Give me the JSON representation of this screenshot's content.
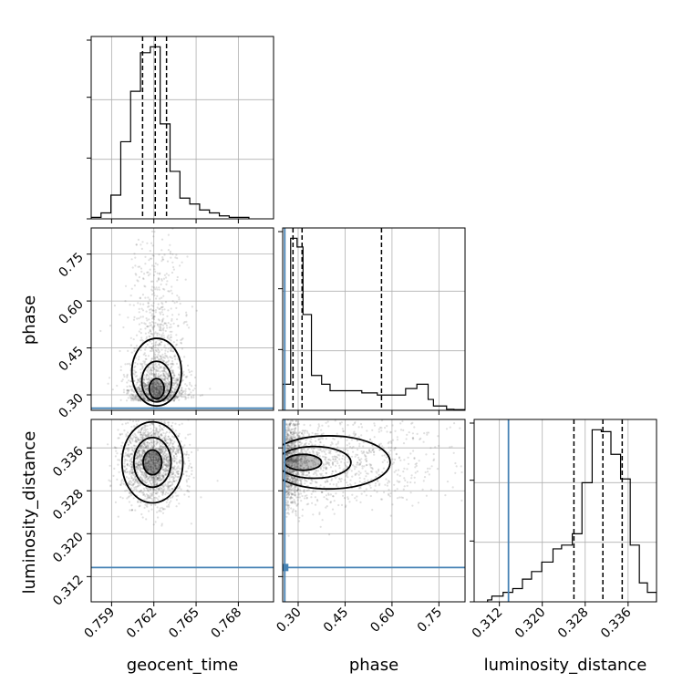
{
  "chart_data": {
    "type": "corner",
    "parameters": [
      "geocent_time",
      "phase",
      "luminosity_distance"
    ],
    "axis_labels": {
      "x": [
        "geocent_time",
        "phase",
        "luminosity_distance"
      ],
      "y": [
        "phase",
        "luminosity_distance"
      ]
    },
    "truths": {
      "geocent_time": 0.7568,
      "phase": 0.2572,
      "luminosity_distance": 0.3137
    },
    "truth_color": "#4682b4",
    "grid": true,
    "ranges": {
      "geocent_time": [
        0.75755,
        0.7705
      ],
      "phase": [
        0.2505,
        0.8335
      ],
      "luminosity_distance": [
        0.3073,
        0.3413
      ]
    },
    "ticks": {
      "geocent_time": {
        "values": [
          0.759,
          0.762,
          0.765,
          0.768
        ],
        "labels": [
          "0.759",
          "0.762",
          "0.765",
          "0.768"
        ]
      },
      "phase": {
        "values": [
          0.3,
          0.45,
          0.6,
          0.75
        ],
        "labels": [
          "0.30",
          "0.45",
          "0.60",
          "0.75"
        ]
      },
      "luminosity_distance": {
        "values": [
          0.312,
          0.32,
          0.328,
          0.336
        ],
        "labels": [
          "0.312",
          "0.320",
          "0.328",
          "0.336"
        ]
      }
    },
    "diagonals": [
      {
        "parameter": "geocent_time",
        "quantiles": [
          0.7612,
          0.7621,
          0.7629
        ],
        "bin_edges": [
          0.75755,
          0.75825,
          0.75895,
          0.75965,
          0.76035,
          0.76105,
          0.76175,
          0.76245,
          0.76315,
          0.76385,
          0.76455,
          0.76525,
          0.76595,
          0.76665,
          0.76735,
          0.76805,
          0.76875
        ],
        "counts": [
          0.5,
          2,
          8,
          26,
          43,
          56,
          58,
          32,
          16,
          7,
          5,
          3,
          2,
          1,
          0.5,
          0.5
        ]
      },
      {
        "parameter": "phase",
        "quantiles": [
          0.2835,
          0.3125,
          0.5665
        ],
        "bin_edges": [
          0.2505,
          0.276,
          0.2965,
          0.3155,
          0.3425,
          0.375,
          0.402,
          0.4485,
          0.5035,
          0.553,
          0.6195,
          0.6435,
          0.6795,
          0.7155,
          0.7325,
          0.7745,
          0.798,
          0.8335
        ],
        "counts": [
          12,
          79,
          75,
          44,
          16,
          12,
          9,
          9,
          8,
          7,
          7,
          10,
          12,
          5,
          2,
          0.5,
          0.3
        ]
      },
      {
        "parameter": "luminosity_distance",
        "quantiles": [
          0.3259,
          0.3313,
          0.3349
        ],
        "bin_edges": [
          0.3098,
          0.3106,
          0.3127,
          0.3145,
          0.3163,
          0.318,
          0.3199,
          0.322,
          0.3236,
          0.3256,
          0.3274,
          0.3293,
          0.331,
          0.3328,
          0.3346,
          0.3364,
          0.3381,
          0.3396,
          0.3413
        ],
        "counts": [
          1,
          3,
          5,
          7,
          12,
          16,
          21,
          28,
          30,
          36,
          63,
          91,
          90,
          78,
          65,
          30,
          10,
          5
        ]
      }
    ],
    "pairs": [
      {
        "x": "geocent_time",
        "y": "phase",
        "density_center": [
          0.7622,
          0.297
        ],
        "spread": [
          0.0011,
          0.12
        ]
      },
      {
        "x": "geocent_time",
        "y": "luminosity_distance",
        "density_center": [
          0.7619,
          0.3333
        ],
        "spread": [
          0.0012,
          0.0042
        ]
      },
      {
        "x": "phase",
        "y": "luminosity_distance",
        "density_center": [
          0.2805,
          0.3333
        ],
        "spread": [
          0.14,
          0.0045
        ]
      }
    ]
  }
}
